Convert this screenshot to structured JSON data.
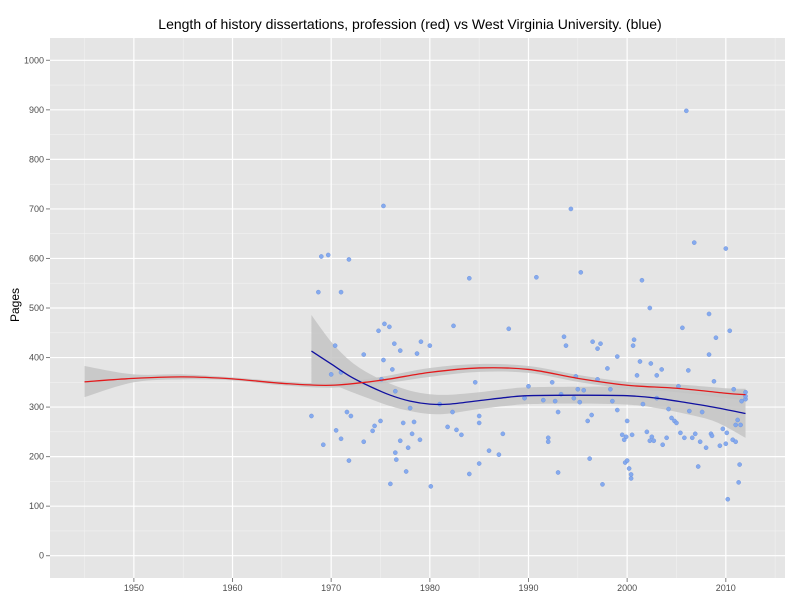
{
  "chart_data": {
    "type": "scatter",
    "title": "Length of history dissertations, profession (red) vs West Virginia University. (blue)",
    "xlabel": "",
    "ylabel": "Pages",
    "xlim": [
      1941.5,
      2016
    ],
    "ylim": [
      -45,
      1045
    ],
    "x_ticks": [
      1950,
      1960,
      1970,
      1980,
      1990,
      2000,
      2010
    ],
    "y_ticks": [
      0,
      100,
      200,
      300,
      400,
      500,
      600,
      700,
      800,
      900,
      1000
    ],
    "x_tick_labels": [
      "1950",
      "1960",
      "1970",
      "1980",
      "1990",
      "2000",
      "2010"
    ],
    "y_tick_labels": [
      "0",
      "100",
      "200",
      "300",
      "400",
      "500",
      "600",
      "700",
      "800",
      "900",
      "1000"
    ],
    "grid": true,
    "legend": "none",
    "colors": {
      "panel": "#e5e5e5",
      "grid_major": "#ffffff",
      "grid_minor": "#f2f2f2",
      "points": "#80a6ee",
      "profession_line": "#e31a1c",
      "wvu_line": "#1010a0",
      "band": "#c4c4c4"
    },
    "series": [
      {
        "name": "West Virginia University dissertations",
        "kind": "points",
        "color": "#80a6ee",
        "points": [
          [
            1968,
            282
          ],
          [
            1968.7,
            532
          ],
          [
            1969,
            604
          ],
          [
            1969.2,
            224
          ],
          [
            1969.7,
            607
          ],
          [
            1970,
            366
          ],
          [
            1970.4,
            424
          ],
          [
            1970.5,
            253
          ],
          [
            1971,
            532
          ],
          [
            1971,
            236
          ],
          [
            1971,
            370
          ],
          [
            1971.6,
            290
          ],
          [
            1971.8,
            192
          ],
          [
            1971.8,
            598
          ],
          [
            1972,
            282
          ],
          [
            1973.3,
            406
          ],
          [
            1973.3,
            230
          ],
          [
            1974.2,
            252
          ],
          [
            1974.4,
            262
          ],
          [
            1974.8,
            454
          ],
          [
            1975,
            272
          ],
          [
            1975.1,
            356
          ],
          [
            1975.3,
            706
          ],
          [
            1975.3,
            395
          ],
          [
            1975.4,
            468
          ],
          [
            1975.9,
            462
          ],
          [
            1976,
            145
          ],
          [
            1976.2,
            376
          ],
          [
            1976.4,
            428
          ],
          [
            1976.5,
            332
          ],
          [
            1976.5,
            208
          ],
          [
            1976.6,
            194
          ],
          [
            1977,
            232
          ],
          [
            1977,
            414
          ],
          [
            1977.3,
            268
          ],
          [
            1977.6,
            170
          ],
          [
            1977.8,
            218
          ],
          [
            1978,
            298
          ],
          [
            1978.2,
            246
          ],
          [
            1978.4,
            270
          ],
          [
            1978.7,
            408
          ],
          [
            1979,
            234
          ],
          [
            1979.1,
            432
          ],
          [
            1980,
            424
          ],
          [
            1980.1,
            140
          ],
          [
            1981,
            306
          ],
          [
            1981.8,
            260
          ],
          [
            1982.3,
            290
          ],
          [
            1982.4,
            464
          ],
          [
            1982.7,
            254
          ],
          [
            1983.2,
            244
          ],
          [
            1984,
            560
          ],
          [
            1984,
            165
          ],
          [
            1984.6,
            350
          ],
          [
            1985,
            282
          ],
          [
            1985,
            186
          ],
          [
            1985,
            268
          ],
          [
            1986,
            212
          ],
          [
            1987,
            204
          ],
          [
            1987.4,
            246
          ],
          [
            1988,
            458
          ],
          [
            1989.6,
            318
          ],
          [
            1990,
            342
          ],
          [
            1990.8,
            562
          ],
          [
            1991.5,
            314
          ],
          [
            1992,
            230
          ],
          [
            1992,
            238
          ],
          [
            1992.4,
            350
          ],
          [
            1992.7,
            312
          ],
          [
            1993,
            290
          ],
          [
            1993,
            168
          ],
          [
            1993.3,
            326
          ],
          [
            1993.6,
            442
          ],
          [
            1993.8,
            424
          ],
          [
            1994.3,
            700
          ],
          [
            1994.6,
            318
          ],
          [
            1994.8,
            362
          ],
          [
            1995,
            336
          ],
          [
            1995.2,
            310
          ],
          [
            1995.3,
            572
          ],
          [
            1995.6,
            334
          ],
          [
            1996,
            272
          ],
          [
            1996.2,
            196
          ],
          [
            1996.4,
            284
          ],
          [
            1996.5,
            432
          ],
          [
            1997,
            356
          ],
          [
            1997,
            418
          ],
          [
            1997.3,
            428
          ],
          [
            1997.5,
            144
          ],
          [
            1998,
            378
          ],
          [
            1998.3,
            336
          ],
          [
            1998.5,
            312
          ],
          [
            1999,
            402
          ],
          [
            1999,
            294
          ],
          [
            1999.5,
            244
          ],
          [
            1999.7,
            234
          ],
          [
            1999.8,
            188
          ],
          [
            1999.9,
            240
          ],
          [
            2000,
            272
          ],
          [
            2000,
            192
          ],
          [
            2000.2,
            176
          ],
          [
            2000.4,
            164
          ],
          [
            2000.4,
            156
          ],
          [
            2000.5,
            244
          ],
          [
            2000.6,
            424
          ],
          [
            2000.7,
            436
          ],
          [
            2001,
            364
          ],
          [
            2001.3,
            392
          ],
          [
            2001.5,
            556
          ],
          [
            2001.6,
            306
          ],
          [
            2002,
            250
          ],
          [
            2002.3,
            232
          ],
          [
            2002.3,
            500
          ],
          [
            2002.4,
            388
          ],
          [
            2002.5,
            240
          ],
          [
            2002.7,
            232
          ],
          [
            2003,
            318
          ],
          [
            2003,
            364
          ],
          [
            2003.5,
            376
          ],
          [
            2003.6,
            224
          ],
          [
            2004,
            238
          ],
          [
            2004.2,
            296
          ],
          [
            2004.5,
            278
          ],
          [
            2004.8,
            272
          ],
          [
            2005,
            268
          ],
          [
            2005.2,
            342
          ],
          [
            2005.4,
            248
          ],
          [
            2005.6,
            460
          ],
          [
            2005.8,
            238
          ],
          [
            2006,
            898
          ],
          [
            2006.2,
            374
          ],
          [
            2006.3,
            292
          ],
          [
            2006.6,
            238
          ],
          [
            2006.8,
            632
          ],
          [
            2006.9,
            246
          ],
          [
            2007.2,
            180
          ],
          [
            2007.4,
            230
          ],
          [
            2007.6,
            290
          ],
          [
            2008,
            218
          ],
          [
            2008.3,
            488
          ],
          [
            2008.3,
            406
          ],
          [
            2008.5,
            246
          ],
          [
            2008.6,
            242
          ],
          [
            2008.8,
            352
          ],
          [
            2009,
            440
          ],
          [
            2009.4,
            222
          ],
          [
            2009.7,
            256
          ],
          [
            2010,
            620
          ],
          [
            2010,
            226
          ],
          [
            2010.1,
            248
          ],
          [
            2010.2,
            114
          ],
          [
            2010.4,
            454
          ],
          [
            2010.7,
            234
          ],
          [
            2010.8,
            336
          ],
          [
            2011,
            230
          ],
          [
            2011,
            264
          ],
          [
            2011.2,
            274
          ],
          [
            2011.3,
            148
          ],
          [
            2011.4,
            184
          ],
          [
            2011.5,
            264
          ],
          [
            2011.6,
            312
          ],
          [
            2012,
            316
          ],
          [
            2012,
            322
          ],
          [
            2012,
            330
          ]
        ]
      },
      {
        "name": "profession",
        "kind": "smooth",
        "color": "#e31a1c",
        "x": [
          1945,
          1950,
          1955,
          1960,
          1965,
          1970,
          1975,
          1980,
          1985,
          1990,
          1995,
          2000,
          2005,
          2010,
          2012
        ],
        "y": [
          351,
          358,
          361,
          357,
          348,
          344,
          354,
          370,
          379,
          376,
          358,
          344,
          338,
          328,
          325
        ],
        "ci_lower": [
          320,
          350,
          356,
          354,
          344,
          339,
          347,
          361,
          371,
          369,
          351,
          337,
          330,
          318,
          313
        ],
        "ci_upper": [
          383,
          366,
          366,
          360,
          352,
          349,
          361,
          379,
          387,
          383,
          365,
          351,
          346,
          338,
          337
        ]
      },
      {
        "name": "West Virginia University",
        "kind": "smooth",
        "color": "#1010a0",
        "x": [
          1968,
          1970,
          1972,
          1974,
          1976,
          1978,
          1980,
          1982,
          1985,
          1988,
          1990,
          1995,
          2000,
          2003,
          2006,
          2009,
          2012
        ],
        "y": [
          413,
          387,
          361,
          341,
          324,
          312,
          306,
          306,
          313,
          320,
          323,
          324,
          323,
          318,
          309,
          299,
          287
        ],
        "ci_lower": [
          345,
          345,
          331,
          316,
          302,
          292,
          286,
          287,
          296,
          303,
          306,
          307,
          305,
          298,
          286,
          270,
          238
        ],
        "ci_upper": [
          486,
          432,
          392,
          366,
          347,
          333,
          326,
          325,
          330,
          337,
          340,
          341,
          341,
          338,
          332,
          328,
          336
        ]
      }
    ]
  }
}
